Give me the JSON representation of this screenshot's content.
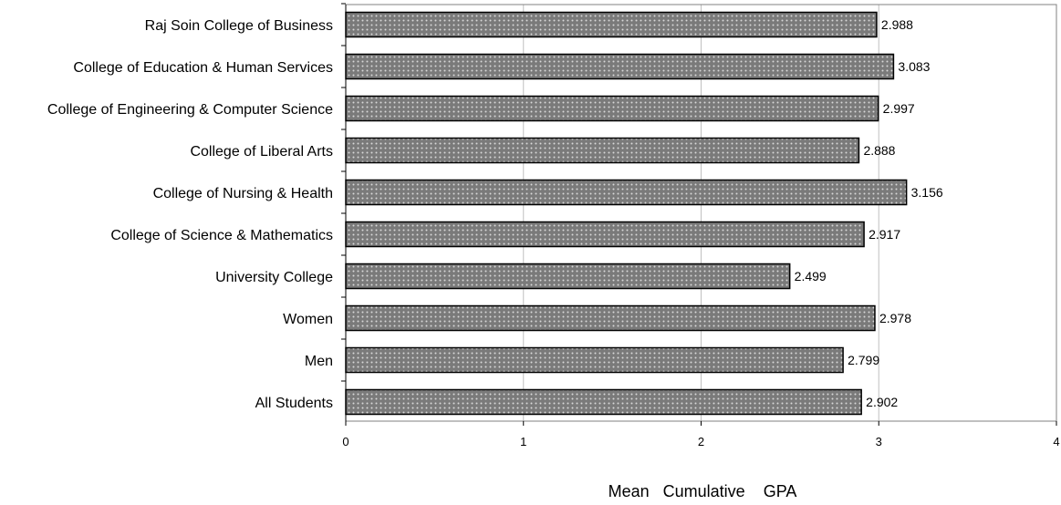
{
  "chart_data": {
    "type": "bar",
    "orientation": "horizontal",
    "categories": [
      "Raj Soin College of Business",
      "College of Education & Human Services",
      "College of Engineering & Computer Science",
      "College of Liberal Arts",
      "College of Nursing & Health",
      "College of Science & Mathematics",
      "University College",
      "Women",
      "Men",
      "All Students"
    ],
    "values": [
      2.988,
      3.083,
      2.997,
      2.888,
      3.156,
      2.917,
      2.499,
      2.978,
      2.799,
      2.902
    ],
    "value_labels": [
      "2.988",
      "3.083",
      "2.997",
      "2.888",
      "3.156",
      "2.917",
      "2.499",
      "2.978",
      "2.799",
      "2.902"
    ],
    "title": "",
    "xlabel": "Mean   Cumulative    GPA",
    "ylabel": "",
    "xlim": [
      0,
      4
    ],
    "x_ticks": [
      "0",
      "1",
      "2",
      "3",
      "4"
    ],
    "grid": "vertical",
    "bar_fill": "#7a7a7a",
    "bar_dot": "#d8d8d8",
    "bar_stroke": "#000000",
    "grid_color": "#c0c0c0",
    "frame_color": "#808080"
  }
}
